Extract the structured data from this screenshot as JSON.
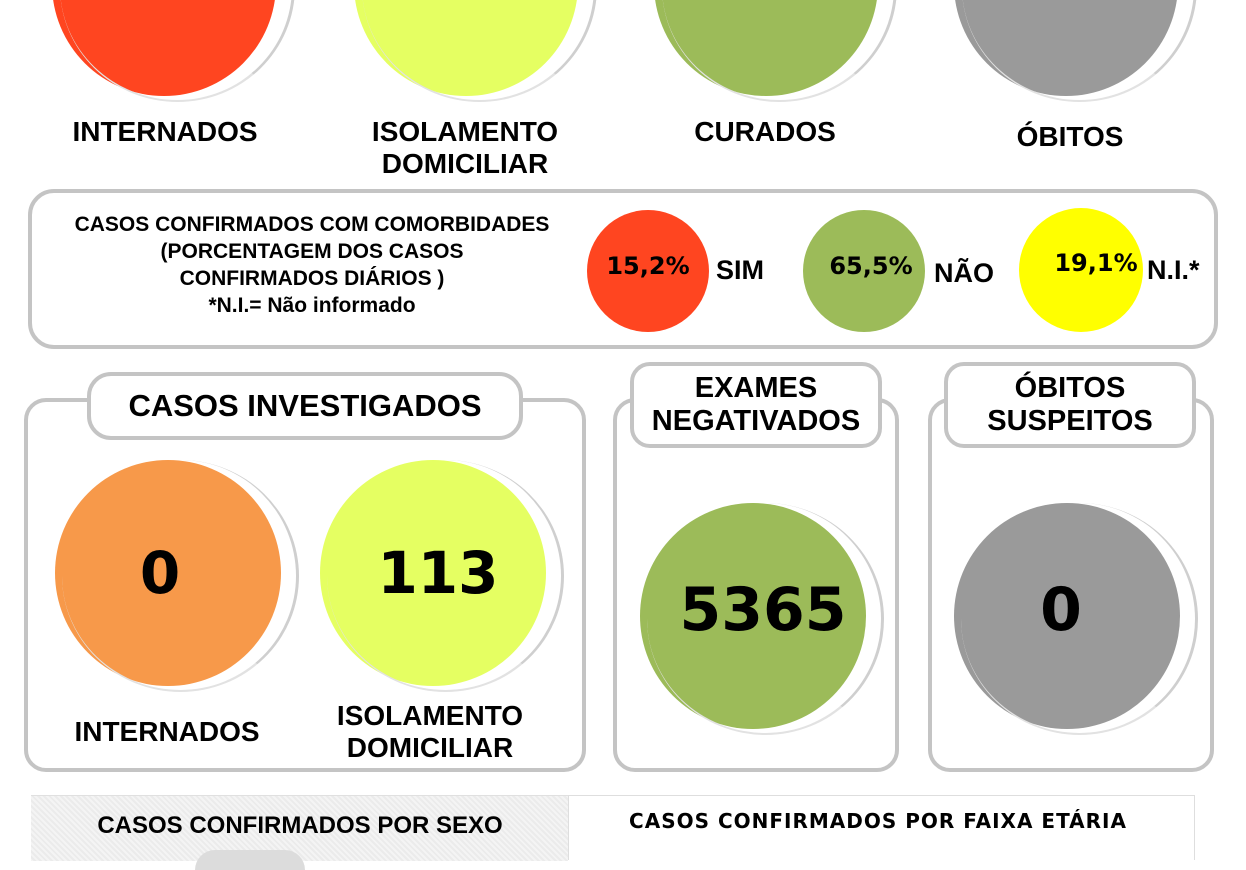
{
  "top_row": {
    "items": [
      {
        "label": "INTERNADOS",
        "color": "#ff4520"
      },
      {
        "label": "ISOLAMENTO\nDOMICILIAR",
        "color": "#e5ff62"
      },
      {
        "label": "CURADOS",
        "color": "#9cbb59"
      },
      {
        "label": "ÓBITOS",
        "color": "#9a9a9a"
      }
    ]
  },
  "comorbidities": {
    "title_lines": [
      "CASOS CONFIRMADOS COM COMORBIDADES",
      "(PORCENTAGEM DOS CASOS",
      "CONFIRMADOS DIÁRIOS )",
      "*N.I.= Não informado"
    ],
    "items": [
      {
        "value": "15,2%",
        "label": "SIM",
        "color": "#ff4520"
      },
      {
        "value": "65,5%",
        "label": "NÃO",
        "color": "#9cbb59"
      },
      {
        "value": "19,1%",
        "label": "N.I.*",
        "color": "#ffff00"
      }
    ]
  },
  "investigated": {
    "title": "CASOS INVESTIGADOS",
    "hospitalized": {
      "value": "0",
      "label": "INTERNADOS",
      "color": "#f7994a"
    },
    "home_isolation": {
      "value": "113",
      "label": "ISOLAMENTO\nDOMICILIAR",
      "color": "#e5ff62"
    }
  },
  "negative_exams": {
    "title": "EXAMES\nNEGATIVADOS",
    "value": "5365",
    "color": "#9cbb59"
  },
  "suspected_deaths": {
    "title": "ÓBITOS\nSUSPEITOS",
    "value": "0",
    "color": "#9a9a9a"
  },
  "bottom": {
    "by_sex_title": "CASOS CONFIRMADOS POR SEXO",
    "by_age_title": "CASOS CONFIRMADOS POR FAIXA ETÁRIA"
  }
}
